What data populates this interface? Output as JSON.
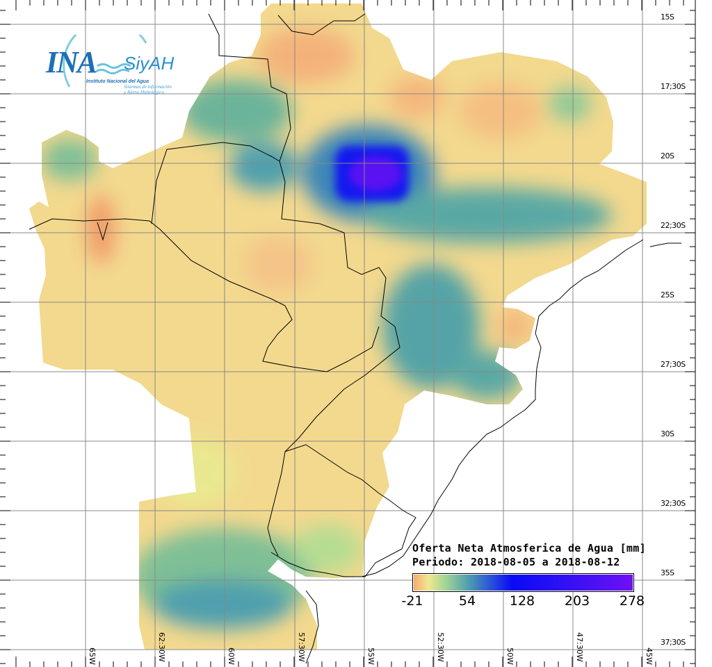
{
  "logo": {
    "acronym": "INA",
    "brand": "SiyAH",
    "institution": "Instituto Nacional del Agua",
    "subtitle_line1": "Sistemas de información",
    "subtitle_line2": "y Alerta Hidrológico"
  },
  "legend": {
    "title": "Oferta Neta Atmosferica de Agua [mm]",
    "period": "Periodo: 2018-08-05 a 2018-08-12",
    "ticks": [
      "-21",
      "54",
      "128",
      "203",
      "278"
    ],
    "colors": {
      "low": "#f7a86e",
      "mid_low": "#f0e891",
      "mid": "#4f9fae",
      "high": "#0a0af5",
      "max": "#7010f5"
    }
  },
  "axes": {
    "lat_labels": [
      "15S",
      "17;30S",
      "20S",
      "22;30S",
      "25S",
      "27;30S",
      "30S",
      "32;30S",
      "35S",
      "37;30S"
    ],
    "lon_labels": [
      "65W",
      "62:30W",
      "60W",
      "57:30W",
      "55W",
      "52:30W",
      "50W",
      "47:30W",
      "45W"
    ]
  }
}
